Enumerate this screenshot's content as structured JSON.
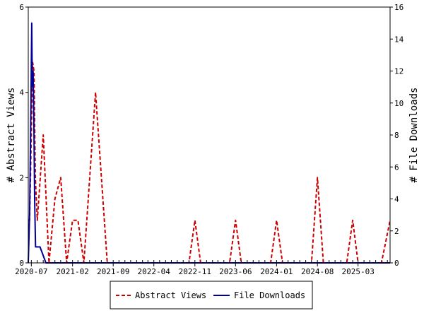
{
  "chart_data": {
    "type": "line",
    "x_axis": {
      "start": "2020-06-15",
      "end": "2025-08-15",
      "ticks": [
        {
          "date": "2020-07-01",
          "label": "2020-07"
        },
        {
          "date": "2021-02-01",
          "label": "2021-02"
        },
        {
          "date": "2021-09-01",
          "label": "2021-09"
        },
        {
          "date": "2022-04-01",
          "label": "2022-04"
        },
        {
          "date": "2022-11-01",
          "label": "2022-11"
        },
        {
          "date": "2023-06-01",
          "label": "2023-06"
        },
        {
          "date": "2024-01-01",
          "label": "2024-01"
        },
        {
          "date": "2024-08-01",
          "label": "2024-08"
        },
        {
          "date": "2025-03-01",
          "label": "2025-03"
        }
      ]
    },
    "y_left": {
      "label": "# Abstract Views",
      "min": 0,
      "max": 6,
      "ticks": [
        0,
        2,
        4,
        6
      ]
    },
    "y_right": {
      "label": "# File Downloads",
      "min": 0,
      "max": 16,
      "ticks": [
        0,
        2,
        4,
        6,
        8,
        10,
        12,
        14,
        16
      ]
    },
    "grid": false,
    "legend_position": "bottom",
    "series": [
      {
        "name": "Abstract Views",
        "axis": "left",
        "color": "#cc0000",
        "style": "dashed",
        "points": [
          [
            "2020-06-15",
            1
          ],
          [
            "2020-06-22",
            1
          ],
          [
            "2020-07-01",
            3
          ],
          [
            "2020-07-08",
            4.7
          ],
          [
            "2020-07-15",
            4.5
          ],
          [
            "2020-07-22",
            2
          ],
          [
            "2020-08-01",
            1
          ],
          [
            "2020-09-01",
            3
          ],
          [
            "2020-10-01",
            0
          ],
          [
            "2020-11-01",
            1.5
          ],
          [
            "2020-12-01",
            2
          ],
          [
            "2021-01-01",
            0
          ],
          [
            "2021-02-01",
            1
          ],
          [
            "2021-03-01",
            1
          ],
          [
            "2021-04-01",
            0
          ],
          [
            "2021-06-01",
            4
          ],
          [
            "2021-08-01",
            0
          ],
          [
            "2022-10-01",
            0
          ],
          [
            "2022-11-01",
            1
          ],
          [
            "2022-12-01",
            0
          ],
          [
            "2023-05-01",
            0
          ],
          [
            "2023-06-01",
            1
          ],
          [
            "2023-07-01",
            0
          ],
          [
            "2023-12-01",
            0
          ],
          [
            "2024-01-01",
            1
          ],
          [
            "2024-02-01",
            0
          ],
          [
            "2024-07-01",
            0
          ],
          [
            "2024-08-01",
            2
          ],
          [
            "2024-09-01",
            0
          ],
          [
            "2025-01-01",
            0
          ],
          [
            "2025-02-01",
            1
          ],
          [
            "2025-03-01",
            0
          ],
          [
            "2025-07-01",
            0
          ],
          [
            "2025-08-15",
            1
          ]
        ]
      },
      {
        "name": "File Downloads",
        "axis": "right",
        "color": "#000099",
        "style": "solid",
        "points": [
          [
            "2020-06-15",
            0
          ],
          [
            "2020-06-22",
            3
          ],
          [
            "2020-06-29",
            10
          ],
          [
            "2020-07-03",
            15
          ],
          [
            "2020-07-06",
            11
          ],
          [
            "2020-07-10",
            12
          ],
          [
            "2020-07-14",
            9
          ],
          [
            "2020-07-18",
            4
          ],
          [
            "2020-07-23",
            1
          ],
          [
            "2020-08-15",
            1
          ],
          [
            "2020-09-15",
            0
          ],
          [
            "2025-08-15",
            0
          ]
        ]
      }
    ]
  }
}
